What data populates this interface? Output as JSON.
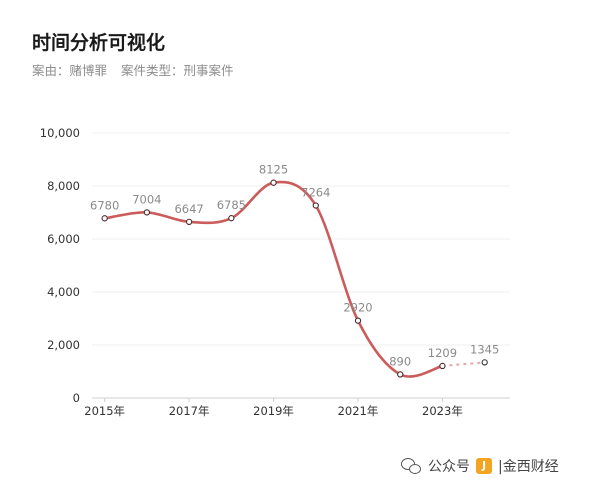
{
  "header": {
    "title": "时间分析可视化",
    "case_label": "案由：赌博罪",
    "type_label": "案件类型：刑事案件"
  },
  "watermark": {
    "source": "公众号",
    "brand": "|金西财经"
  },
  "chart_data": {
    "type": "line",
    "title": "时间分析可视化",
    "x": [
      2015,
      2016,
      2017,
      2018,
      2019,
      2020,
      2021,
      2022,
      2023,
      2024
    ],
    "values": [
      6780,
      7004,
      6647,
      6785,
      8125,
      7264,
      2920,
      890,
      1209,
      1345
    ],
    "xticks": [
      "2015年",
      "2017年",
      "2019年",
      "2021年",
      "2023年"
    ],
    "yticks": [
      "0",
      "2,000",
      "4,000",
      "6,000",
      "8,000",
      "10,000"
    ],
    "ylim": [
      0,
      10000
    ],
    "projected_last_point": true,
    "line_color": "#cc5c5c",
    "grid": true
  }
}
